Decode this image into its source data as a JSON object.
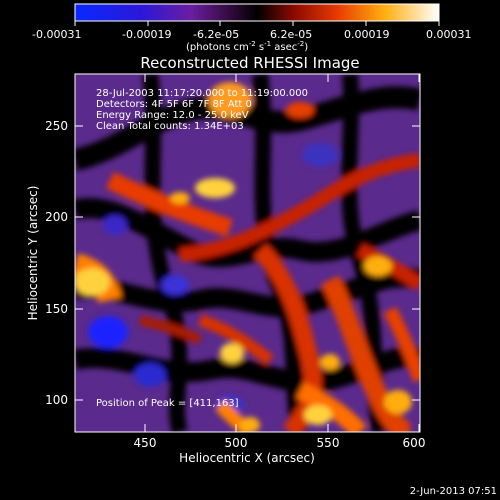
{
  "colorbar": {
    "tick_labels": [
      "-0.00031",
      "-0.00019",
      "-6.2e-05",
      "6.2e-05",
      "0.00019",
      "0.00031"
    ],
    "units": {
      "main": "(photons cm",
      "exp1": "-2",
      "s_prefix": " s",
      "exp2": "-1",
      "asec_prefix": " asec",
      "exp3": "-2",
      "suffix": ")"
    }
  },
  "plot": {
    "title": "Reconstructed RHESSI Image",
    "xlabel": "Heliocentric X (arcsec)",
    "ylabel": "Heliocentric Y (arcsec)",
    "xticks": [
      "450",
      "500",
      "550",
      "600"
    ],
    "yticks": [
      "100",
      "150",
      "200",
      "250"
    ],
    "xlim": [
      410,
      600
    ],
    "ylim": [
      88,
      270
    ]
  },
  "annotations": {
    "line1": "28-Jul-2003 11:17:20.000 to 11:19:00.000",
    "line2": "Detectors: 4F 5F 6F 7F 8F  Att 0",
    "line3": "Energy Range: 12.0 - 25.0 keV",
    "line4": "Clean     Total counts: 1.34E+03",
    "peak": "Position of Peak = [411,163]"
  },
  "footer": {
    "timestamp": "2-Jun-2013 07:51"
  },
  "colors": {
    "colormap": [
      "#0a28ff",
      "#3a1aa8",
      "#5a2a8c",
      "#2a0a35",
      "#000000",
      "#c81e00",
      "#ff6e00",
      "#ffd23c",
      "#ffffff"
    ]
  }
}
